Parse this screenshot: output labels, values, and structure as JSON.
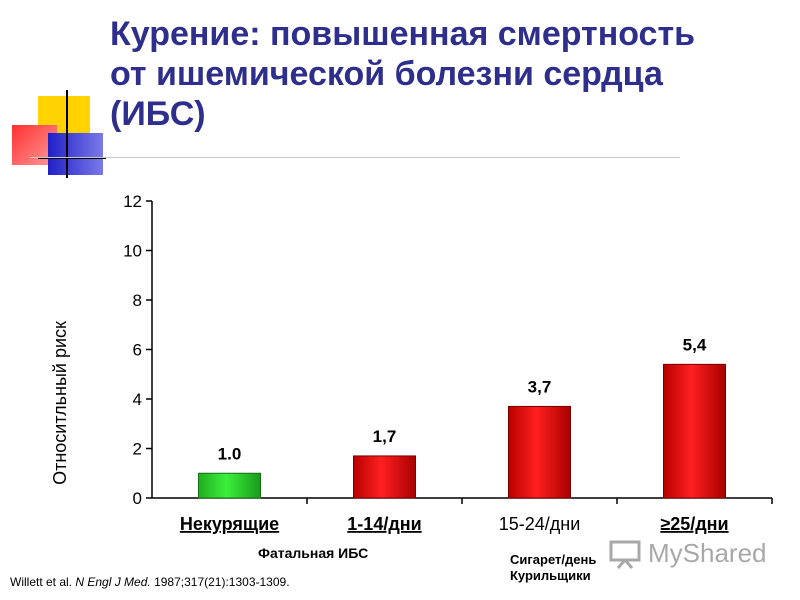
{
  "slide": {
    "title": "Курение: повышенная смертность\nот ишемической болезни сердца\n(ИБС)",
    "group_label": "Фатальная ИБС",
    "unit_label_line1": "Сигарет/день",
    "unit_label_line2": "Курильщики",
    "citation_authors": "Willett et al.",
    "citation_journal": "N Engl J Med.",
    "citation_ref": "1987;317(21):1303-1309.",
    "watermark": "MyShared",
    "watermark_icon": "presentation-board-icon"
  },
  "colors": {
    "title": "#2e2e8c",
    "nonsmoker_bar": "#22cc22",
    "smoker_bar": "#dd1111",
    "deco_yellow": "#ffd200",
    "deco_red": "#ff4040",
    "deco_blue": "#2a2ad0"
  },
  "chart_data": {
    "type": "bar",
    "categories": [
      "Некурящие",
      "1-14/дни",
      "15-24/дни",
      "≥25/дни"
    ],
    "values": [
      1.0,
      1.7,
      3.7,
      5.4
    ],
    "value_labels": [
      "1.0",
      "1,7",
      "3,7",
      "5,4"
    ],
    "ylabel": "Относитльный риск",
    "xlabel": "",
    "ylim": [
      0,
      12
    ],
    "yticks": [
      "0",
      "2",
      "4",
      "6",
      "8",
      "10",
      "12"
    ],
    "grid": false,
    "legend": "none"
  }
}
